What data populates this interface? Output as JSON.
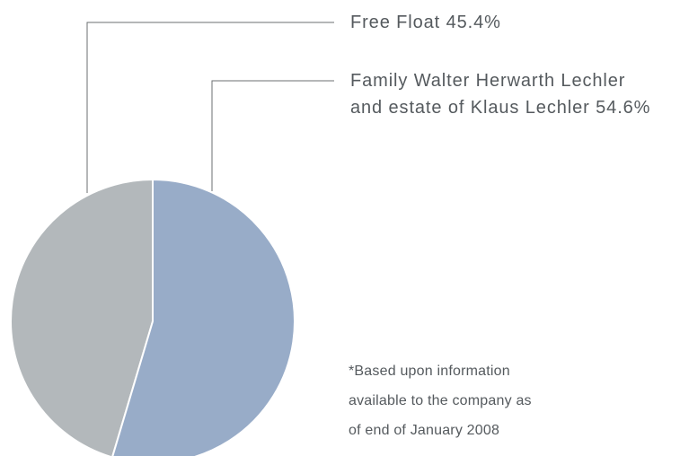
{
  "chart_data": {
    "type": "pie",
    "categories": [
      "Free Float",
      "Family Walter Herwarth Lechler\nand estate of Klaus Lechler"
    ],
    "values": [
      45.4,
      54.6
    ],
    "value_labels": [
      "45.4%",
      "54.6%"
    ],
    "colors": [
      "#b3b8bb",
      "#98acc8"
    ],
    "note": "*Based upon information\navailable to the company as\nof end of January 2008"
  }
}
